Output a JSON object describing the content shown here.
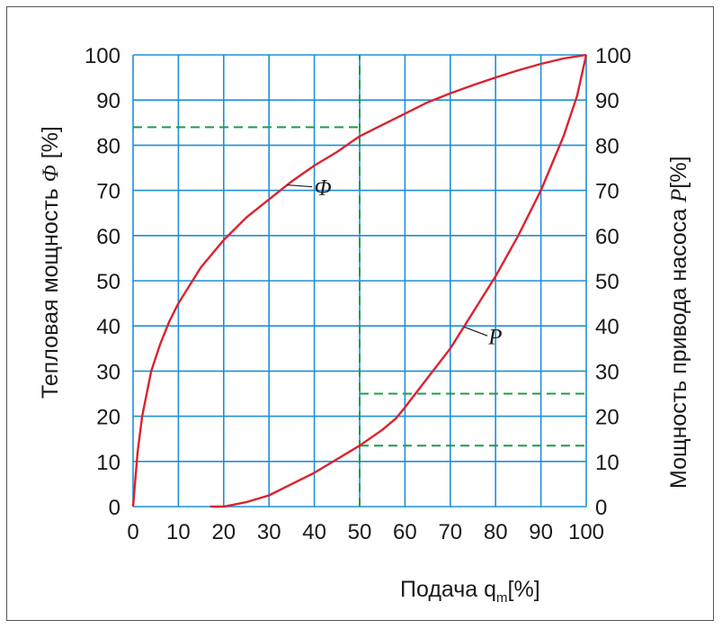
{
  "chart_data": {
    "type": "line",
    "xlabel": {
      "main": "Подача q",
      "sub": "m",
      "unit": "[%]"
    },
    "ylabel_left": {
      "text": "Тепловая мощность ",
      "symbol": "Φ",
      "unit": " [%]"
    },
    "ylabel_right": {
      "text": "Мощность привода насоса ",
      "symbol": "P",
      "unit": "[%]"
    },
    "xlim": [
      0,
      100
    ],
    "ylim": [
      0,
      100
    ],
    "x_ticks": [
      "0",
      "10",
      "20",
      "30",
      "40",
      "50",
      "60",
      "70",
      "80",
      "90",
      "100"
    ],
    "y_ticks": [
      "0",
      "10",
      "20",
      "30",
      "40",
      "50",
      "60",
      "70",
      "80",
      "90",
      "100"
    ],
    "grid": true,
    "colors": {
      "grid": "#1d8fd8",
      "curve": "#d9232e",
      "reference": "#1f9c4a",
      "frame": "#555555"
    },
    "series": [
      {
        "name": "Φ",
        "label_at": [
          40,
          69
        ],
        "x": [
          0,
          1,
          2,
          4,
          6,
          8,
          10,
          15,
          20,
          25,
          30,
          35,
          40,
          45,
          50,
          55,
          60,
          65,
          70,
          75,
          80,
          85,
          90,
          95,
          100
        ],
        "y": [
          0,
          12,
          20,
          30,
          36,
          41,
          45,
          53,
          59,
          64,
          68,
          72,
          75.5,
          78.5,
          82,
          84.5,
          87,
          89.5,
          91.5,
          93.3,
          95,
          96.6,
          98,
          99.2,
          100
        ]
      },
      {
        "name": "P",
        "label_at": [
          80,
          36
        ],
        "x": [
          17,
          20,
          25,
          30,
          35,
          40,
          45,
          50,
          55,
          58,
          60,
          65,
          70,
          75,
          80,
          85,
          90,
          95,
          98,
          100
        ],
        "y": [
          0,
          0,
          1,
          2.5,
          5,
          7.5,
          10.5,
          13.5,
          17,
          19.5,
          22,
          28.5,
          35,
          43,
          51,
          60,
          70,
          82,
          91,
          100
        ]
      }
    ],
    "reference_lines": [
      {
        "orientation": "horizontal",
        "y": 84,
        "from": 0,
        "to": 50
      },
      {
        "orientation": "vertical",
        "x": 50,
        "from": 0,
        "to": 100
      },
      {
        "orientation": "horizontal",
        "y": 25,
        "from": 50,
        "to": 100
      },
      {
        "orientation": "horizontal",
        "y": 13.5,
        "from": 50,
        "to": 100
      }
    ]
  }
}
